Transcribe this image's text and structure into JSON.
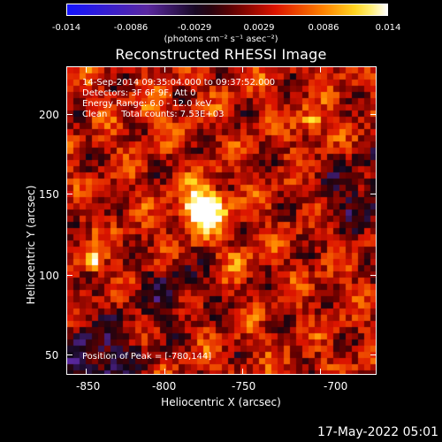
{
  "colorbar": {
    "tick_labels": [
      "-0.014",
      "-0.0086",
      "-0.0029",
      "0.0029",
      "0.0086",
      "0.014"
    ],
    "units": "(photons cm⁻² s⁻¹ asec⁻²)",
    "range": [
      -0.014,
      0.014
    ],
    "colormap": "blue-black-red-yellow-white"
  },
  "image": {
    "title": "Reconstructed RHESSI Image",
    "info_lines": [
      "14-Sep-2014 09:35:04.000 to 09:37:52.000",
      "Detectors: 3F 6F 9F, Att 0",
      "Energy Range: 6.0 - 12.0 keV",
      "Clean     Total counts: 7.53E+03"
    ],
    "peak_text": "Position of Peak = [-780,144]",
    "peak_position_arcsec": [
      -780,
      144
    ]
  },
  "axes": {
    "xlabel": "Heliocentric X (arcsec)",
    "ylabel": "Heliocentric Y (arcsec)",
    "x_ticks": [
      "-850",
      "-800",
      "-750",
      "-700"
    ],
    "y_ticks": [
      "50",
      "100",
      "150",
      "200"
    ],
    "xlim": [
      -865,
      -670
    ],
    "ylim": [
      38,
      232
    ]
  },
  "footer": {
    "date": "17-May-2022 05:01"
  }
}
